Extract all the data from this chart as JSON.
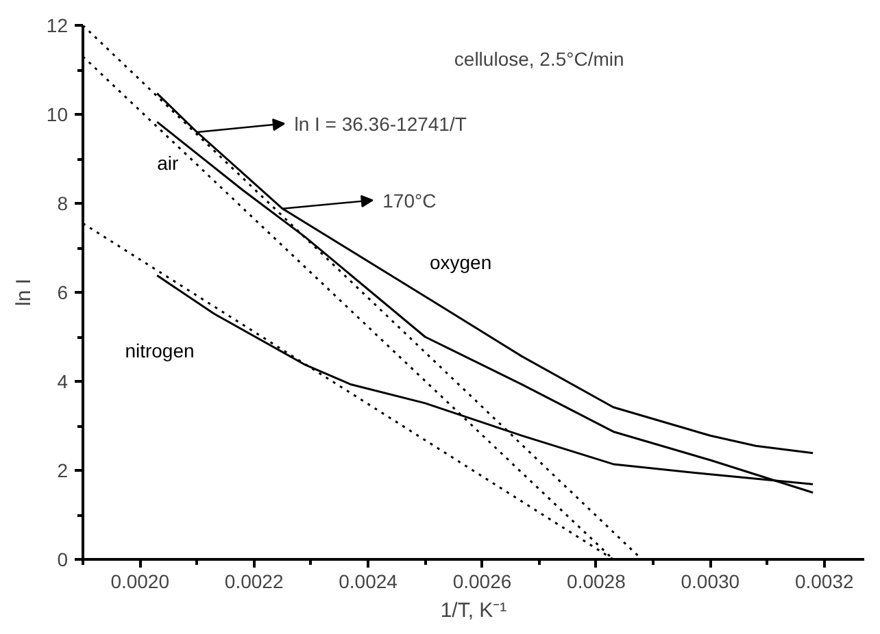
{
  "chart_data": {
    "type": "line",
    "xlabel": "1/T, K⁻¹",
    "ylabel": "ln I",
    "xlim": [
      0.0019,
      0.00327
    ],
    "ylim": [
      0,
      12
    ],
    "xticks": [
      {
        "value": 0.002,
        "label": "0.0020"
      },
      {
        "value": 0.0022,
        "label": "0.0022"
      },
      {
        "value": 0.0024,
        "label": "0.0024"
      },
      {
        "value": 0.0026,
        "label": "0.0026"
      },
      {
        "value": 0.0028,
        "label": "0.0028"
      },
      {
        "value": 0.003,
        "label": "0.0030"
      },
      {
        "value": 0.0032,
        "label": "0.0032"
      }
    ],
    "yticks": [
      0,
      2,
      4,
      6,
      8,
      10,
      12
    ],
    "grid": false,
    "series": [
      {
        "name": "oxygen",
        "color": "#000000",
        "x": [
          0.00203,
          0.0021,
          0.00225,
          0.00252,
          0.00267,
          0.00283,
          0.003,
          0.00308,
          0.00318
        ],
        "values": [
          10.47,
          9.6,
          7.88,
          5.75,
          4.56,
          3.42,
          2.78,
          2.55,
          2.39
        ]
      },
      {
        "name": "air",
        "color": "#000000",
        "x": [
          0.00203,
          0.00218,
          0.00229,
          0.0025,
          0.00267,
          0.00283,
          0.003,
          0.00318
        ],
        "values": [
          9.83,
          8.3,
          7.24,
          5.0,
          3.93,
          2.87,
          2.23,
          1.5
        ]
      },
      {
        "name": "nitrogen",
        "color": "#000000",
        "x": [
          0.00203,
          0.00213,
          0.00229,
          0.00237,
          0.0025,
          0.00267,
          0.00283,
          0.003,
          0.00318
        ],
        "values": [
          6.38,
          5.52,
          4.37,
          3.93,
          3.51,
          2.78,
          2.14,
          1.91,
          1.69
        ]
      },
      {
        "color": "#000000",
        "line_style": "dotted",
        "x": [
          0.0019,
          0.00288
        ],
        "values": [
          12.0,
          0
        ]
      },
      {
        "color": "#000000",
        "line_style": "dotted",
        "x": [
          0.0019,
          0.00283
        ],
        "values": [
          11.3,
          0
        ]
      },
      {
        "color": "#000000",
        "line_style": "dotted",
        "x": [
          0.0019,
          0.00283
        ],
        "values": [
          7.55,
          0
        ]
      }
    ],
    "annotations": [
      "cellulose, 2.5°C/min",
      {
        "text": "ln I = 36.36-12741/T",
        "x": 0.0021,
        "y": 9.6
      },
      {
        "text": "170°C",
        "x": 0.00225,
        "y": 7.88
      }
    ]
  }
}
